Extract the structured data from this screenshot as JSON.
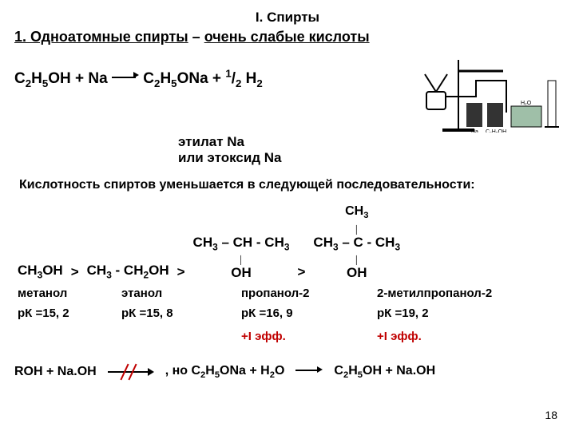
{
  "title": "I. Спирты",
  "subtitle_num": "1. Одноатомные спирты",
  "subtitle_dash": " – ",
  "subtitle_under": "очень слабые кислоты",
  "equation": {
    "lhs": "C<sub>2</sub>H<sub>5</sub>OH + Na",
    "rhs": "C<sub>2</sub>H<sub>5</sub>ONa + <sup>1</sup>/<sub>2</sub> H<sub>2</sub>",
    "prod_label1": "этилат Na",
    "prod_label2": "или этоксид Na"
  },
  "figure_labels": {
    "a": "Na",
    "b": "C₂H₅OH",
    "c": "H₂O"
  },
  "statement": "Кислотность спиртов уменьшается в следующей последовательности:",
  "mols": {
    "m1_line": "CH<sub>3</sub>OH",
    "m2_line": "CH<sub>3</sub> - CH<sub>2</sub>OH",
    "m3_top": "",
    "m3_mid": "CH<sub>3</sub> – CH - CH<sub>3</sub>",
    "m3_bot": "OH",
    "m4_top": "CH<sub>3</sub>",
    "m4_mid": "CH<sub>3</sub> – C - CH<sub>3</sub>",
    "m4_bot": "OH"
  },
  "names": {
    "n1": "метанол",
    "n2": "этанол",
    "n3": "пропанол-2",
    "n4": "2-метилпропанол-2"
  },
  "pks": {
    "p1": "рК =15, 2",
    "p2": "рК =15, 8",
    "p3": "рК =16, 9",
    "p4": "рК =19, 2"
  },
  "ieff": "+I эфф.",
  "bottom": {
    "lhs": "ROH + Na.OH",
    "mid": ", но C<sub>2</sub>H<sub>5</sub>ONa + H<sub>2</sub>O",
    "rhs": "C<sub>2</sub>H<sub>5</sub>OH + Na.OH"
  },
  "page": "18"
}
